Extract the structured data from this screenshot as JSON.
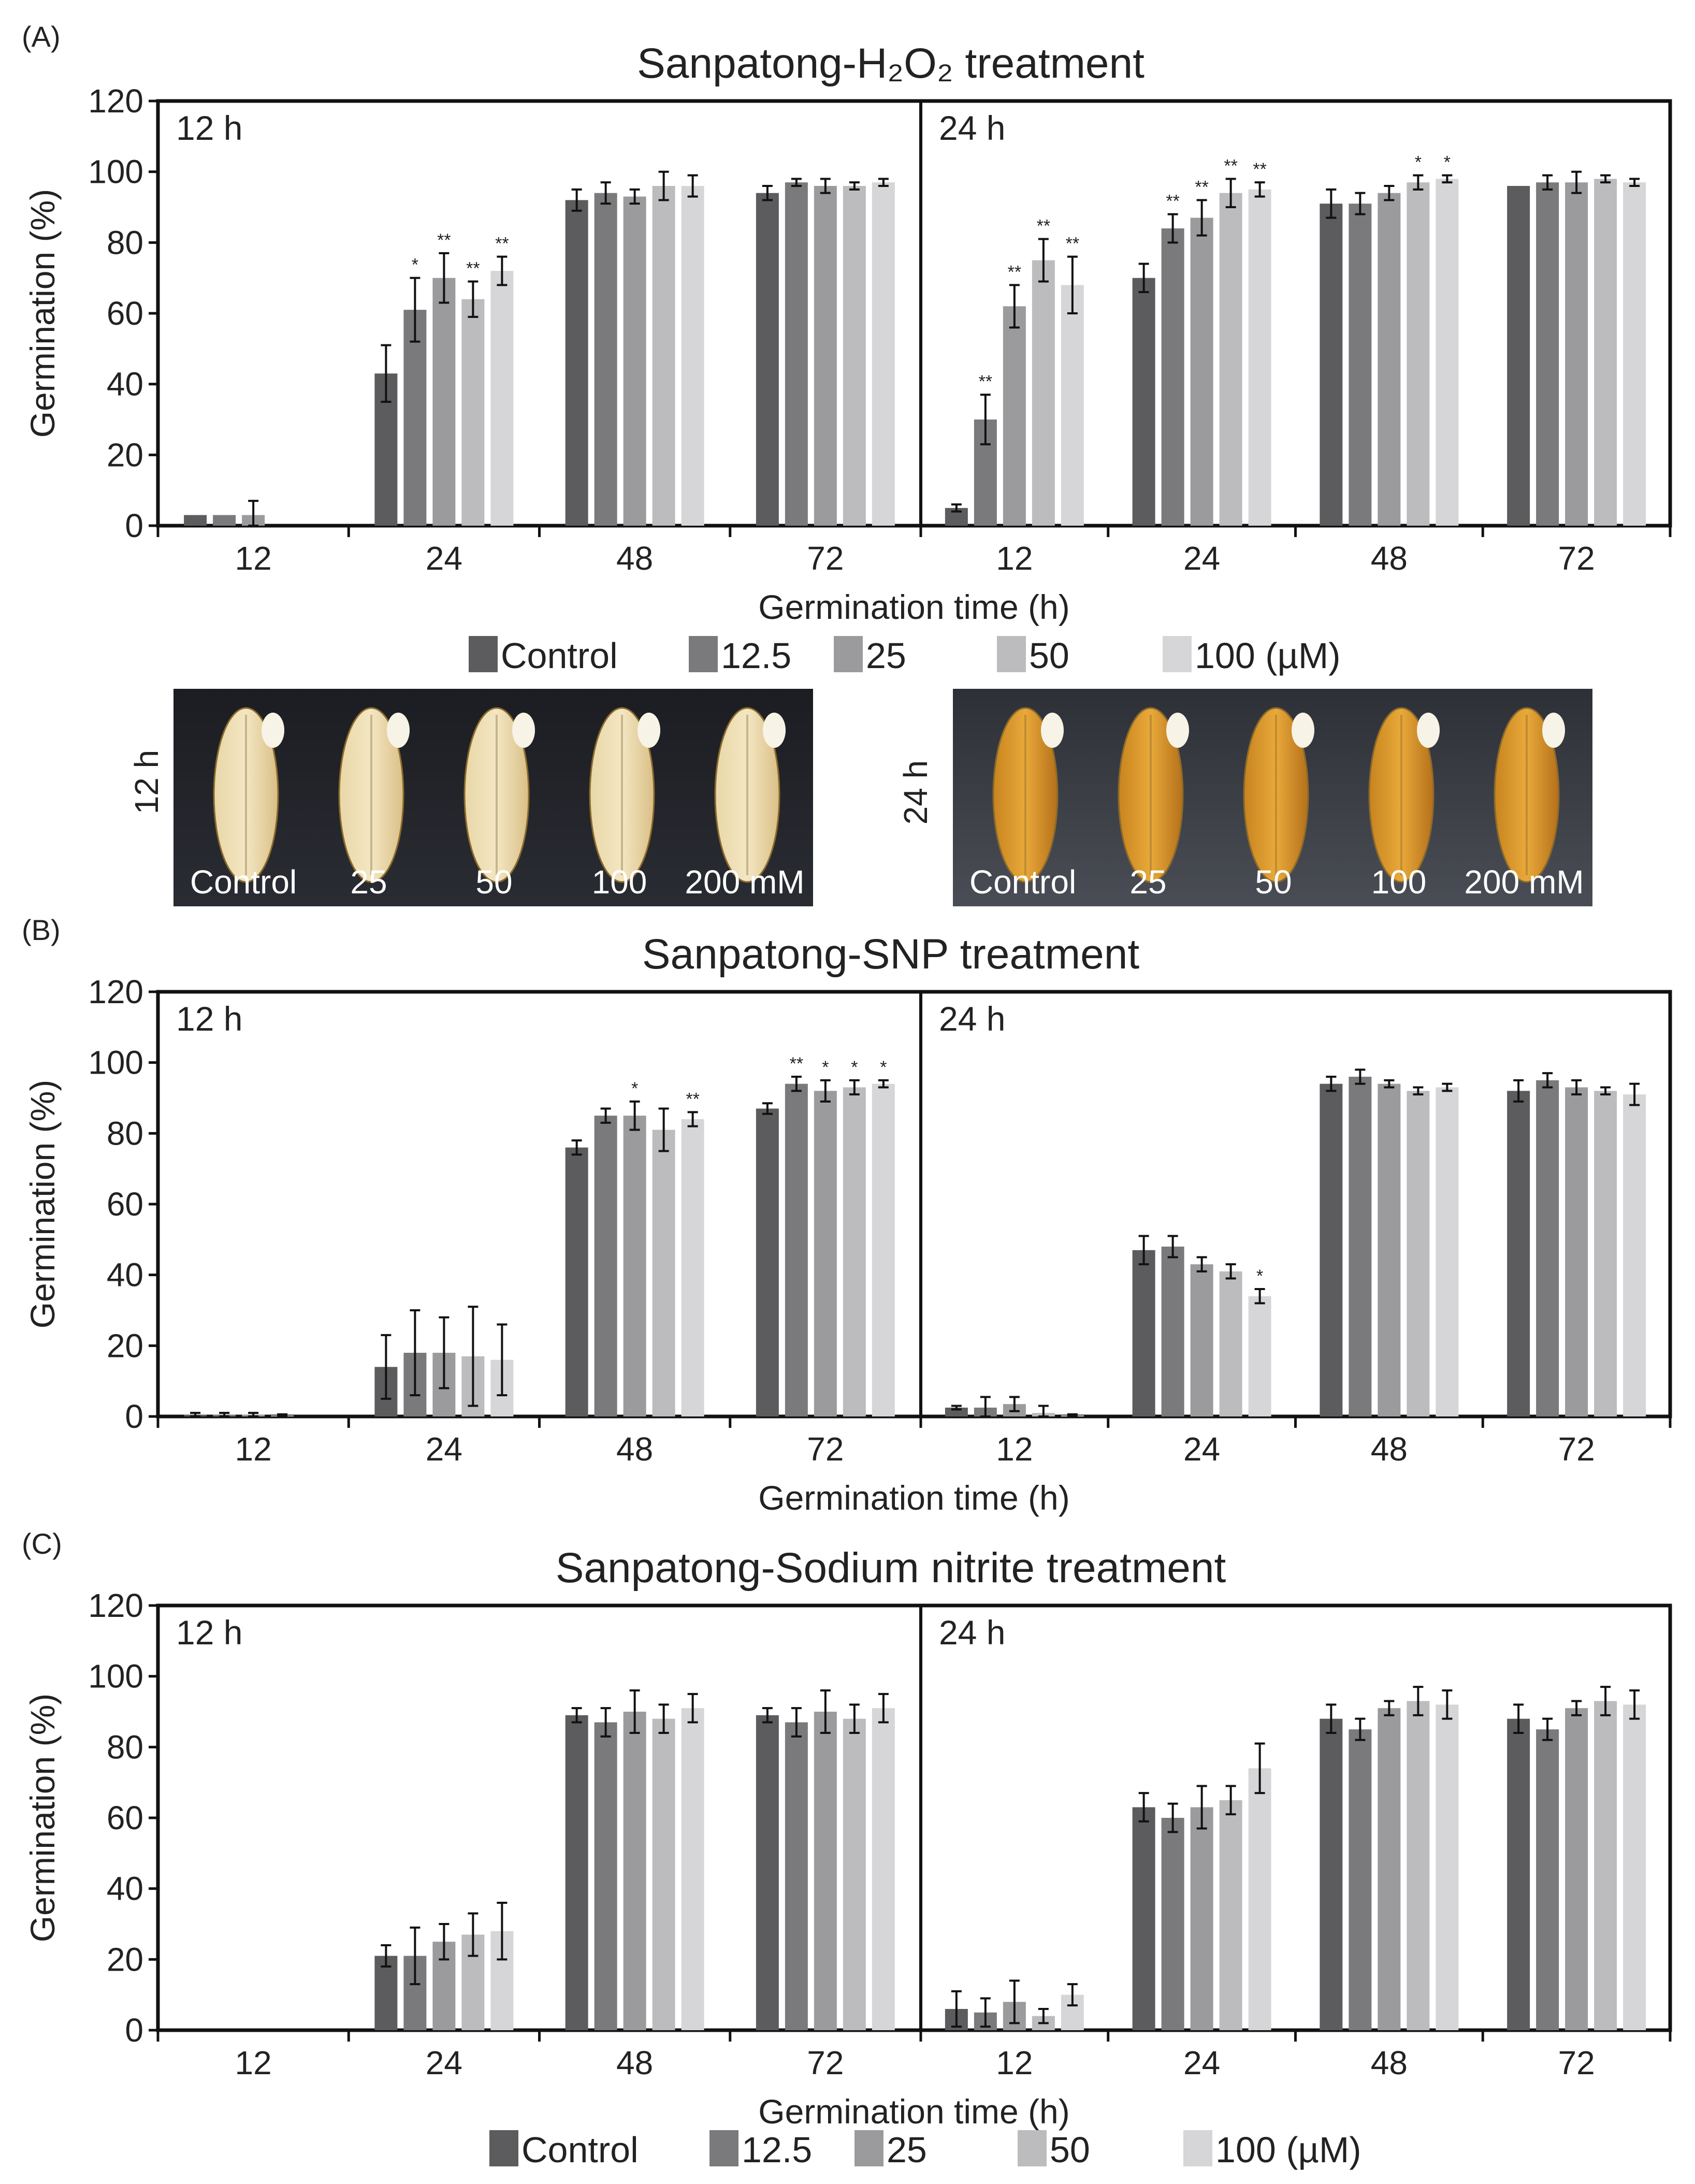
{
  "colors": [
    "#5c5c5e",
    "#7a7a7c",
    "#9b9b9d",
    "#bcbcbe",
    "#d6d6d8"
  ],
  "legend": {
    "items": [
      "Control",
      "12.5",
      "25",
      "50",
      "100 (µM)"
    ]
  },
  "photos": {
    "left": {
      "time_label": "12 h",
      "labels": [
        "Control",
        "25",
        "50",
        "100",
        "200 mM"
      ]
    },
    "right": {
      "time_label": "24 h",
      "labels": [
        "Control",
        "25",
        "50",
        "100",
        "200 mM"
      ]
    }
  },
  "chart_data": [
    {
      "type": "bar",
      "panel_label": "(A)",
      "title": "Sanpatong-H₂O₂ treatment",
      "ylabel": "Germination (%)",
      "xlabel": "Germination time (h)",
      "ylim": [
        0,
        120
      ],
      "yticks": [
        0,
        20,
        40,
        60,
        80,
        100,
        120
      ],
      "categories": [
        "12",
        "24",
        "48",
        "72"
      ],
      "series_names": [
        "Control",
        "12.5",
        "25",
        "50",
        "100 (µM)"
      ],
      "subpanels": [
        {
          "label": "12 h",
          "values": [
            [
              0,
              0,
              0,
              0,
              0
            ],
            [
              43,
              61,
              70,
              64,
              72
            ],
            [
              92,
              94,
              93,
              96,
              96
            ],
            [
              94,
              97,
              96,
              96,
              97
            ]
          ],
          "errors": [
            [
              0,
              0,
              0,
              0,
              0
            ],
            [
              8,
              9,
              7,
              5,
              4
            ],
            [
              3,
              3,
              2,
              4,
              3
            ],
            [
              2,
              1,
              2,
              1,
              1
            ]
          ],
          "sig": [
            [
              "",
              "",
              "",
              "",
              ""
            ],
            [
              "",
              "*",
              "**",
              "**",
              "**"
            ],
            [
              "",
              "",
              "",
              "",
              ""
            ],
            [
              "",
              "",
              "",
              "",
              ""
            ]
          ]
        },
        {
          "label": "24 h",
          "values": [
            [
              5,
              30,
              62,
              75,
              68
            ],
            [
              70,
              84,
              87,
              94,
              95
            ],
            [
              91,
              91,
              94,
              97,
              98
            ],
            [
              96,
              97,
              97,
              98,
              97
            ]
          ],
          "errors": [
            [
              1,
              7,
              6,
              6,
              8
            ],
            [
              4,
              4,
              5,
              4,
              2
            ],
            [
              4,
              3,
              2,
              2,
              1
            ],
            [
              0,
              2,
              3,
              1,
              1
            ]
          ],
          "sig": [
            [
              "",
              "**",
              "**",
              "**",
              "**"
            ],
            [
              "",
              "**",
              "**",
              "**",
              "**"
            ],
            [
              "",
              "",
              "",
              "*",
              "*"
            ],
            [
              "",
              "",
              "",
              "",
              ""
            ]
          ]
        }
      ],
      "small_bars_12h_12": {
        "values": [
          3,
          3,
          3
        ],
        "errors": [
          0,
          0,
          4
        ]
      }
    },
    {
      "type": "bar",
      "panel_label": "(B)",
      "title": "Sanpatong-SNP treatment",
      "ylabel": "Germination (%)",
      "xlabel": "Germination time (h)",
      "ylim": [
        0,
        120
      ],
      "yticks": [
        0,
        20,
        40,
        60,
        80,
        100,
        120
      ],
      "categories": [
        "12",
        "24",
        "48",
        "72"
      ],
      "series_names": [
        "Control",
        "12.5",
        "25",
        "50",
        "100 (µM)"
      ],
      "subpanels": [
        {
          "label": "12 h",
          "values": [
            [
              0.5,
              0.5,
              0.5,
              0.3,
              0
            ],
            [
              14,
              18,
              18,
              17,
              16
            ],
            [
              76,
              85,
              85,
              81,
              84
            ],
            [
              87,
              94,
              92,
              93,
              94
            ]
          ],
          "errors": [
            [
              0.5,
              0.5,
              0.5,
              0.3,
              0
            ],
            [
              9,
              12,
              10,
              14,
              10
            ],
            [
              2,
              2,
              4,
              6,
              2
            ],
            [
              1.5,
              2,
              3,
              2,
              1
            ]
          ],
          "sig": [
            [
              "",
              "",
              "",
              "",
              ""
            ],
            [
              "",
              "",
              "",
              "",
              ""
            ],
            [
              "",
              "",
              "*",
              "",
              "**"
            ],
            [
              "",
              "**",
              "*",
              "*",
              "*"
            ]
          ]
        },
        {
          "label": "24 h",
          "values": [
            [
              2.5,
              2.5,
              3.5,
              1,
              0.3
            ],
            [
              47,
              48,
              43,
              41,
              34
            ],
            [
              94,
              96,
              94,
              92,
              93
            ],
            [
              92,
              95,
              93,
              92,
              91
            ]
          ],
          "errors": [
            [
              0.5,
              3,
              2,
              2,
              0.3
            ],
            [
              4,
              3,
              2,
              2,
              2
            ],
            [
              2,
              2,
              1,
              1,
              1
            ],
            [
              3,
              2,
              2,
              1,
              3
            ]
          ],
          "sig": [
            [
              "",
              "",
              "",
              "",
              ""
            ],
            [
              "",
              "",
              "",
              "",
              "*"
            ],
            [
              "",
              "",
              "",
              "",
              ""
            ],
            [
              "",
              "",
              "",
              "",
              ""
            ]
          ]
        }
      ]
    },
    {
      "type": "bar",
      "panel_label": "(C)",
      "title": "Sanpatong-Sodium nitrite treatment",
      "ylabel": "Germination (%)",
      "xlabel": "Germination time (h)",
      "ylim": [
        0,
        120
      ],
      "yticks": [
        0,
        20,
        40,
        60,
        80,
        100,
        120
      ],
      "categories": [
        "12",
        "24",
        "48",
        "72"
      ],
      "series_names": [
        "Control",
        "12.5",
        "25",
        "50",
        "100 (µM)"
      ],
      "subpanels": [
        {
          "label": "12 h",
          "values": [
            [
              0,
              0,
              0,
              0,
              0
            ],
            [
              21,
              21,
              25,
              27,
              28
            ],
            [
              89,
              87,
              90,
              88,
              91
            ],
            [
              89,
              87,
              90,
              88,
              91
            ]
          ],
          "errors": [
            [
              0,
              0,
              0,
              0,
              0
            ],
            [
              3,
              8,
              5,
              6,
              8
            ],
            [
              2,
              4,
              6,
              4,
              4
            ],
            [
              2,
              4,
              6,
              4,
              4
            ]
          ],
          "sig": [
            [
              "",
              "",
              "",
              "",
              ""
            ],
            [
              "",
              "",
              "",
              "",
              ""
            ],
            [
              "",
              "",
              "",
              "",
              ""
            ],
            [
              "",
              "",
              "",
              "",
              ""
            ]
          ]
        },
        {
          "label": "24 h",
          "values": [
            [
              6,
              5,
              8,
              4,
              10
            ],
            [
              63,
              60,
              63,
              65,
              74
            ],
            [
              88,
              85,
              91,
              93,
              92
            ],
            [
              88,
              85,
              91,
              93,
              92
            ]
          ],
          "errors": [
            [
              5,
              4,
              6,
              2,
              3
            ],
            [
              4,
              4,
              6,
              4,
              7
            ],
            [
              4,
              3,
              2,
              4,
              4
            ],
            [
              4,
              3,
              2,
              4,
              4
            ]
          ],
          "sig": [
            [
              "",
              "",
              "",
              "",
              ""
            ],
            [
              "",
              "",
              "",
              "",
              ""
            ],
            [
              "",
              "",
              "",
              "",
              ""
            ],
            [
              "",
              "",
              "",
              "",
              ""
            ]
          ]
        }
      ]
    }
  ]
}
